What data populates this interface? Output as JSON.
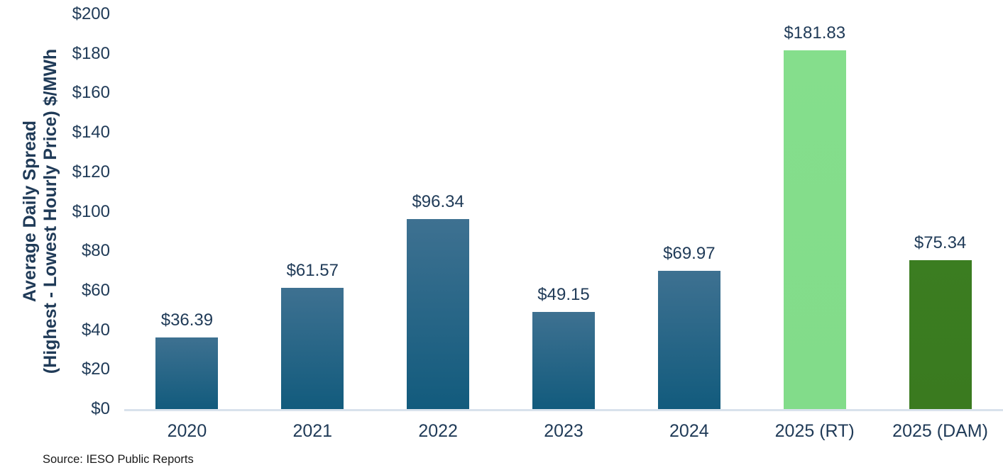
{
  "chart_data": {
    "type": "bar",
    "title": "",
    "xlabel": "",
    "ylabel": "Average Daily Spread (Highest - Lowest Hourly Price) $/MWh",
    "categories": [
      "2020",
      "2021",
      "2022",
      "2023",
      "2024",
      "2025 (RT)",
      "2025 (DAM)"
    ],
    "values": [
      36.39,
      61.57,
      96.34,
      49.15,
      69.97,
      181.83,
      75.34
    ],
    "data_labels": [
      "$36.39",
      "$61.57",
      "$96.34",
      "$49.15",
      "$69.97",
      "$181.83",
      "$75.34"
    ],
    "bars": [
      {
        "label": "2020",
        "value": 36.39,
        "data_label": "$36.39",
        "fill_top": "#3e7191",
        "fill_bottom": "#125b7d"
      },
      {
        "label": "2021",
        "value": 61.57,
        "data_label": "$61.57",
        "fill_top": "#3e7191",
        "fill_bottom": "#125b7d"
      },
      {
        "label": "2022",
        "value": 96.34,
        "data_label": "$96.34",
        "fill_top": "#3e7191",
        "fill_bottom": "#125b7d"
      },
      {
        "label": "2023",
        "value": 49.15,
        "data_label": "$49.15",
        "fill_top": "#3e7191",
        "fill_bottom": "#125b7d"
      },
      {
        "label": "2024",
        "value": 69.97,
        "data_label": "$69.97",
        "fill_top": "#3e7191",
        "fill_bottom": "#125b7d"
      },
      {
        "label": "2025 (RT)",
        "value": 181.83,
        "data_label": "$181.83",
        "fill_top": "#85de8c",
        "fill_bottom": "#82dc8a"
      },
      {
        "label": "2025 (DAM)",
        "value": 75.34,
        "data_label": "$75.34",
        "fill_top": "#3b7d21",
        "fill_bottom": "#3a7a1f"
      }
    ],
    "y_axis": {
      "title_line1": "Average Daily Spread",
      "title_line2": "(Highest - Lowest Hourly Price) $/MWh",
      "tick_labels": [
        "$0",
        "$20",
        "$40",
        "$60",
        "$80",
        "$100",
        "$120",
        "$140",
        "$160",
        "$180",
        "$200"
      ],
      "tick_values": [
        0,
        20,
        40,
        60,
        80,
        100,
        120,
        140,
        160,
        180,
        200
      ]
    },
    "ylim": [
      0,
      200
    ],
    "grid": false,
    "legend": "none",
    "source_note": "Source: IESO Public Reports",
    "colors": {
      "blue_bar_top": "#3e7191",
      "blue_bar_bottom": "#125b7d",
      "green_light": "#85de8c",
      "green_dark": "#3b7d21",
      "text_navy": "#1f3a57",
      "axis_line": "#d9e2ec",
      "source_text": "#1a1a1a"
    }
  }
}
